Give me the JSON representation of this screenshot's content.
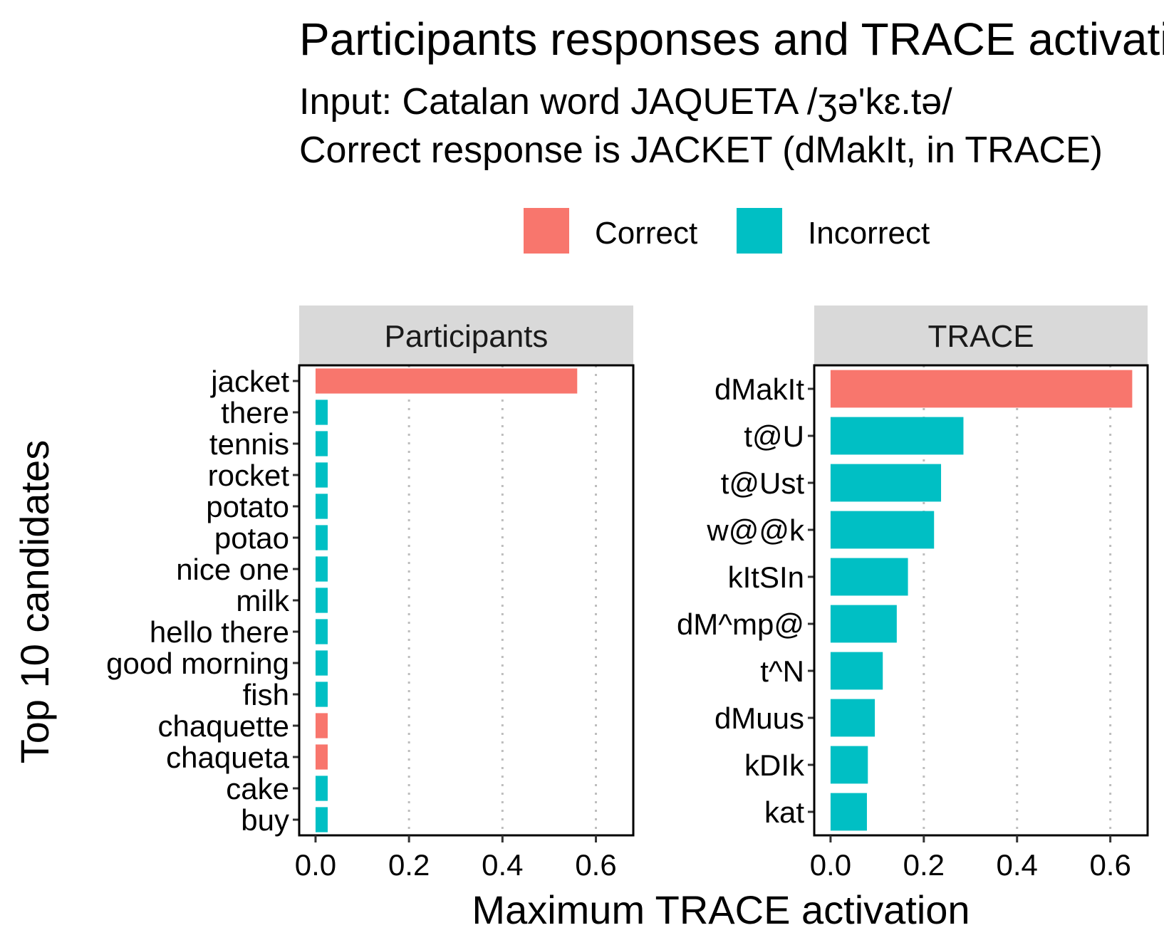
{
  "title": "Participants responses and TRACE activations",
  "subtitle_line1": "Input: Catalan word JAQUETA /ʒə'kɛ.tə/",
  "subtitle_line2": "Correct response is JACKET (dMakIt, in TRACE)",
  "legend": {
    "items": [
      {
        "label": "Correct",
        "color": "#F8766D"
      },
      {
        "label": "Incorrect",
        "color": "#00BFC4"
      }
    ]
  },
  "xlabel": "Maximum TRACE activation",
  "ylabel": "Top 10 candidates",
  "chart_data": [
    {
      "type": "bar",
      "orientation": "horizontal",
      "panel": "Participants",
      "categories": [
        "jacket",
        "there",
        "tennis",
        "rocket",
        "potato",
        "potao",
        "nice one",
        "milk",
        "hello there",
        "good morning",
        "fish",
        "chaquette",
        "chaqueta",
        "cake",
        "buy"
      ],
      "values": [
        0.56,
        0.026,
        0.026,
        0.026,
        0.026,
        0.026,
        0.026,
        0.026,
        0.026,
        0.026,
        0.026,
        0.026,
        0.026,
        0.026,
        0.026
      ],
      "classes": [
        "Correct",
        "Incorrect",
        "Incorrect",
        "Incorrect",
        "Incorrect",
        "Incorrect",
        "Incorrect",
        "Incorrect",
        "Incorrect",
        "Incorrect",
        "Incorrect",
        "Correct",
        "Correct",
        "Incorrect",
        "Incorrect"
      ],
      "xlim": [
        -0.035,
        0.68
      ],
      "xticks": [
        0.0,
        0.2,
        0.4,
        0.6
      ],
      "xtick_labels": [
        "0.0",
        "0.2",
        "0.4",
        "0.6"
      ],
      "grid": "vertical dotted"
    },
    {
      "type": "bar",
      "orientation": "horizontal",
      "panel": "TRACE",
      "categories": [
        "dMakIt",
        "t@U",
        "t@Ust",
        "w@@k",
        "kItSIn",
        "dM^mp@",
        "t^N",
        "dMuus",
        "kDIk",
        "kat"
      ],
      "values": [
        0.647,
        0.285,
        0.237,
        0.222,
        0.166,
        0.142,
        0.112,
        0.095,
        0.08,
        0.078
      ],
      "classes": [
        "Correct",
        "Incorrect",
        "Incorrect",
        "Incorrect",
        "Incorrect",
        "Incorrect",
        "Incorrect",
        "Incorrect",
        "Incorrect",
        "Incorrect"
      ],
      "xlim": [
        -0.035,
        0.68
      ],
      "xticks": [
        0.0,
        0.2,
        0.4,
        0.6
      ],
      "xtick_labels": [
        "0.0",
        "0.2",
        "0.4",
        "0.6"
      ],
      "grid": "vertical dotted"
    }
  ]
}
